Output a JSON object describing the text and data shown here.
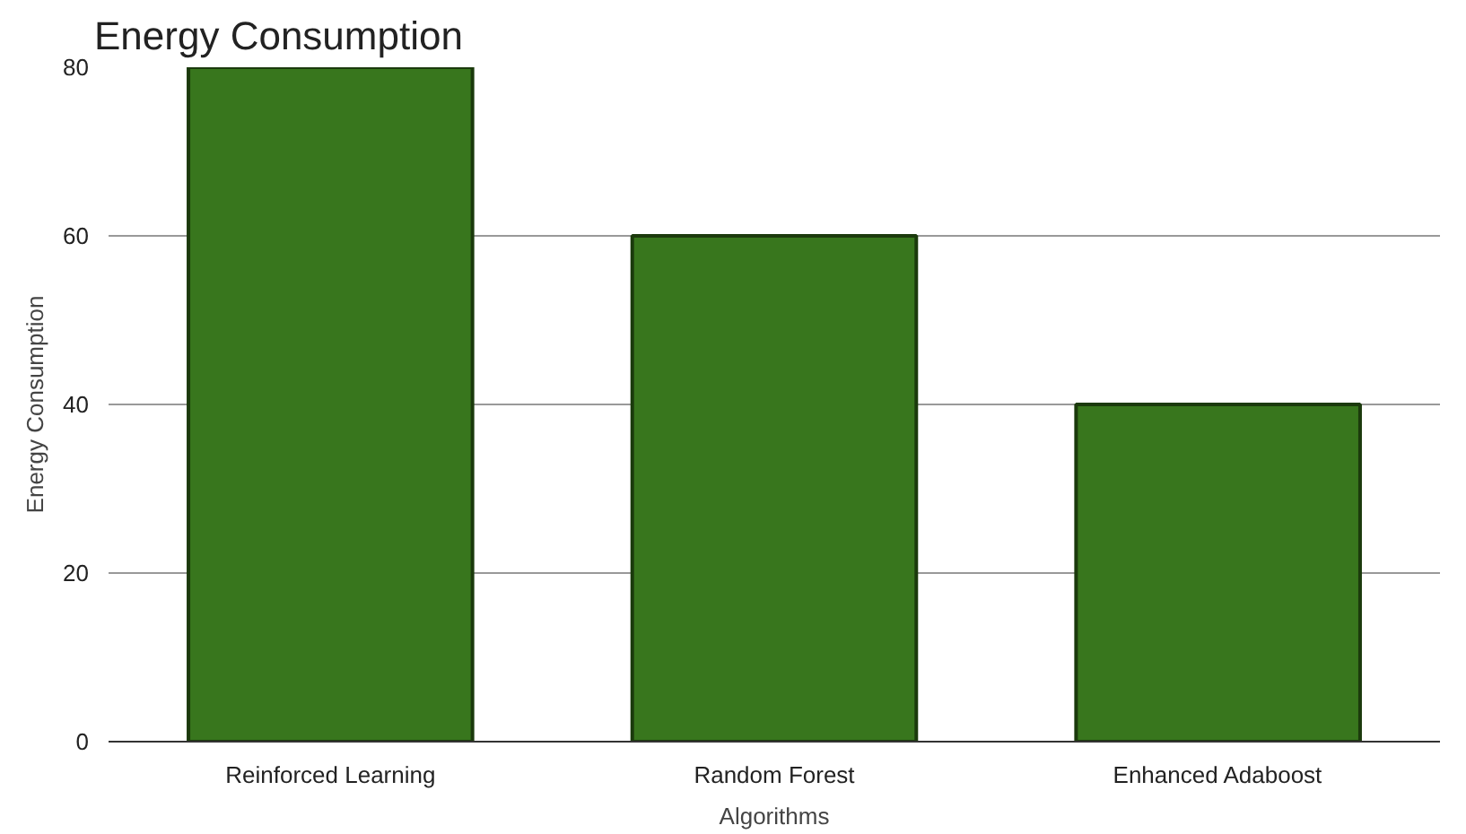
{
  "chart_data": {
    "type": "bar",
    "title": "Energy Consumption",
    "xlabel": "Algorithms",
    "ylabel": "Energy Consumption",
    "categories": [
      "Reinforced Learning",
      "Random Forest",
      "Enhanced Adaboost"
    ],
    "values": [
      80,
      60,
      40
    ],
    "color": "#38761d",
    "ylim": [
      0,
      80
    ],
    "yticks": [
      0,
      20,
      40,
      60,
      80
    ],
    "grid": "y"
  }
}
